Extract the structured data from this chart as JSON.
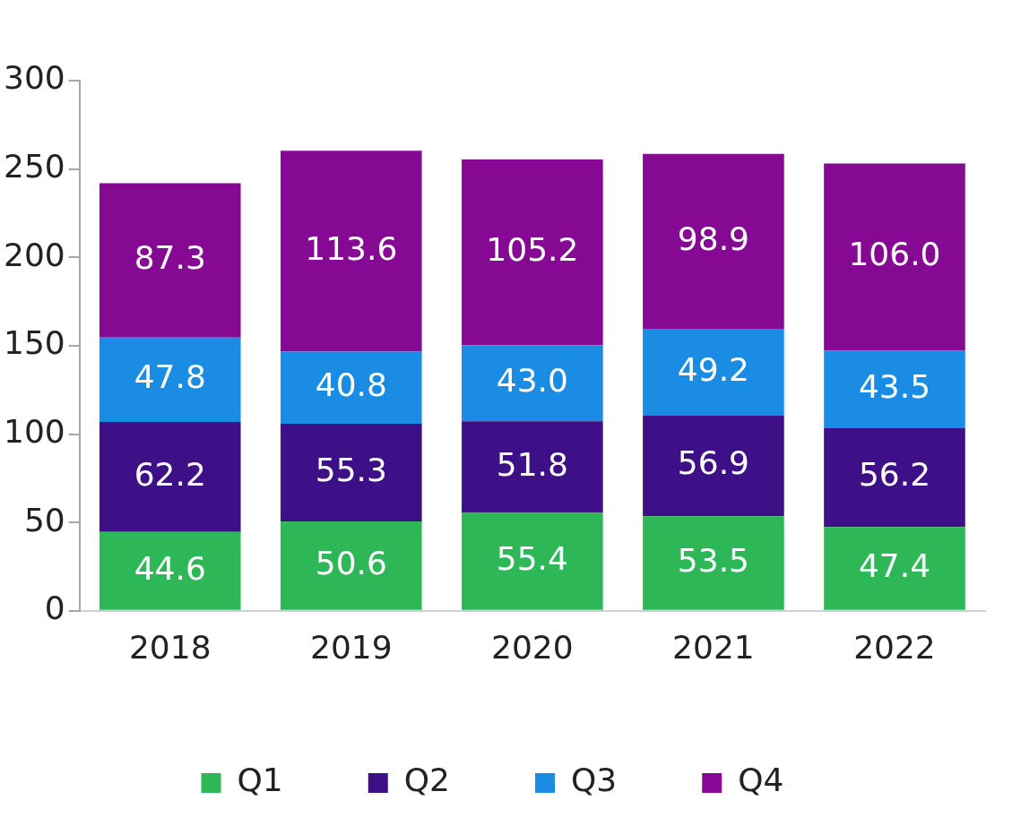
{
  "chart_data": {
    "type": "bar",
    "stacked": true,
    "categories": [
      "2018",
      "2019",
      "2020",
      "2021",
      "2022"
    ],
    "ylim": [
      0,
      300
    ],
    "yticks": [
      0,
      50,
      100,
      150,
      200,
      250,
      300
    ],
    "legend": "bottom",
    "series": [
      {
        "name": "Q1",
        "color": "#2db757",
        "values": [
          44.6,
          50.6,
          55.4,
          53.5,
          47.4
        ],
        "value_labels": [
          "44.6",
          "50.6",
          "55.4",
          "53.5",
          "47.4"
        ]
      },
      {
        "name": "Q2",
        "color": "#3d1088",
        "values": [
          62.2,
          55.3,
          51.8,
          56.9,
          56.2
        ],
        "value_labels": [
          "62.2",
          "55.3",
          "51.8",
          "56.9",
          "56.2"
        ]
      },
      {
        "name": "Q3",
        "color": "#1a8ce3",
        "values": [
          47.8,
          40.8,
          43.0,
          49.2,
          43.5
        ],
        "value_labels": [
          "47.8",
          "40.8",
          "43.0",
          "49.2",
          "43.5"
        ]
      },
      {
        "name": "Q4",
        "color": "#850993",
        "values": [
          87.3,
          113.6,
          105.2,
          98.9,
          106.0
        ],
        "value_labels": [
          "87.3",
          "113.6",
          "105.2",
          "98.9",
          "106.0"
        ]
      }
    ]
  }
}
